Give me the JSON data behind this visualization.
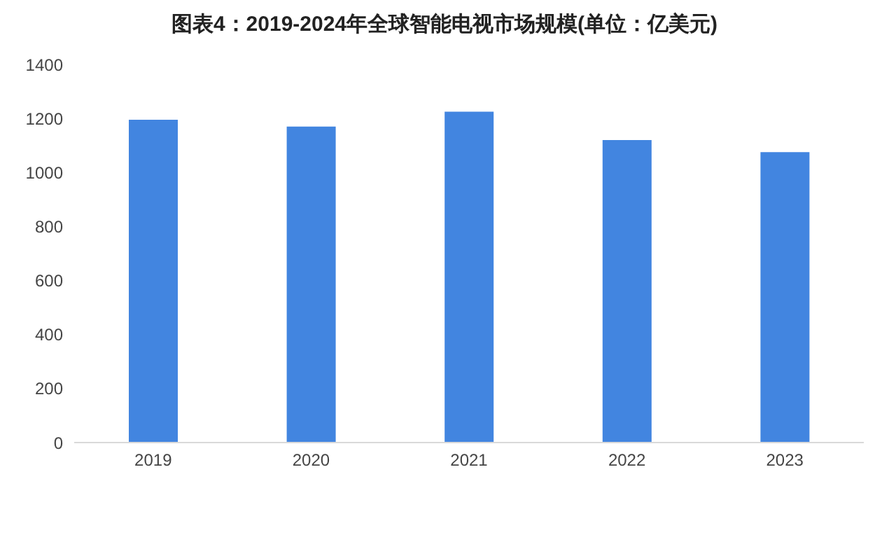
{
  "chart_data": {
    "type": "bar",
    "title": "图表4：2019-2024年全球智能电视市场规模(单位：亿美元)",
    "categories": [
      "2019",
      "2020",
      "2021",
      "2022",
      "2023"
    ],
    "values": [
      1195,
      1170,
      1225,
      1120,
      1075
    ],
    "color": "#4285e0",
    "ylim": [
      0,
      1400
    ],
    "yticks": [
      0,
      200,
      400,
      600,
      800,
      1000,
      1200,
      1400
    ],
    "grid": false
  }
}
